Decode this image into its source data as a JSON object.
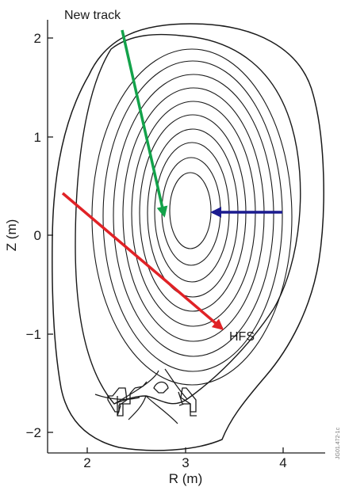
{
  "diagram": {
    "xlabel": "R (m)",
    "ylabel": "Z (m)",
    "x_ticks": [
      "2",
      "3",
      "4"
    ],
    "y_ticks": [
      "2",
      "1",
      "0",
      "−1",
      "−2"
    ],
    "annotations": {
      "new_track": "New track",
      "hfs": "HFS"
    },
    "watermark": "JG01.472-1c",
    "arrow_colors": {
      "new_track": "#13a24a",
      "hfs": "#e02226",
      "horizontal": "#1b1b8f"
    }
  }
}
